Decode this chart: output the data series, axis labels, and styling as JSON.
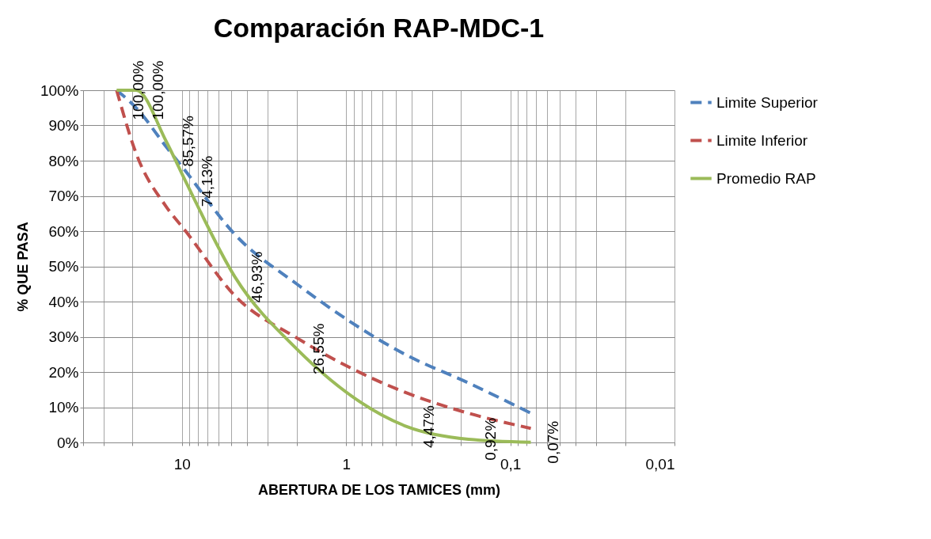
{
  "chart_data": {
    "type": "line",
    "title": "Comparación RAP-MDC-1",
    "xlabel": "ABERTURA DE LOS TAMICES (mm)",
    "ylabel": "% QUE PASA",
    "series": [
      {
        "name": "Limite Superior",
        "color": "#4f81bd",
        "line_style": "dashed",
        "x": [
          25,
          19,
          12.5,
          9.5,
          4.75,
          2.0,
          0.425,
          0.18,
          0.075
        ],
        "values": [
          100,
          95,
          84,
          77,
          59,
          45,
          24.7,
          16.9,
          8.3
        ]
      },
      {
        "name": "Limite Inferior",
        "color": "#c0504d",
        "line_style": "dashed",
        "x": [
          25,
          19,
          12.5,
          9.5,
          4.75,
          2.0,
          0.425,
          0.18,
          0.075
        ],
        "values": [
          100,
          82,
          67,
          60,
          41.6,
          29.7,
          14,
          8.3,
          4
        ]
      },
      {
        "name": "Promedio RAP",
        "color": "#9bbb59",
        "line_style": "solid",
        "x": [
          25,
          19,
          12.5,
          9.5,
          4.75,
          2.0,
          0.425,
          0.18,
          0.075
        ],
        "values": [
          100,
          100,
          85.57,
          74.13,
          46.93,
          26.55,
          4.47,
          0.92,
          0.07
        ],
        "value_labels": [
          "100,00%",
          "100,00%",
          "85,57%",
          "74,13%",
          "46,93%",
          "26,55%",
          "4,47%",
          "0,92%",
          "0,07%"
        ]
      }
    ],
    "log": "x",
    "xlim": [
      40,
      0.01
    ],
    "xticks": [
      {
        "value": 40,
        "label": null
      },
      {
        "value": 30,
        "label": null
      },
      {
        "value": 20,
        "label": null
      },
      10,
      {
        "value": 9,
        "label": null
      },
      {
        "value": 8,
        "label": null
      },
      {
        "value": 7,
        "label": null
      },
      {
        "value": 6,
        "label": null
      },
      {
        "value": 5,
        "label": null
      },
      {
        "value": 4,
        "label": null
      },
      {
        "value": 3,
        "label": null
      },
      {
        "value": 2,
        "label": null
      },
      1,
      {
        "value": 0.9,
        "label": null
      },
      {
        "value": 0.8,
        "label": null
      },
      {
        "value": 0.7,
        "label": null
      },
      {
        "value": 0.6,
        "label": null
      },
      {
        "value": 0.5,
        "label": null
      },
      {
        "value": 0.4,
        "label": null
      },
      {
        "value": 0.3,
        "label": null
      },
      {
        "value": 0.2,
        "label": null
      },
      {
        "value": 0.1,
        "label": "0,1"
      },
      {
        "value": 0.09,
        "label": null
      },
      {
        "value": 0.08,
        "label": null
      },
      {
        "value": 0.07,
        "label": null
      },
      {
        "value": 0.06,
        "label": null
      },
      {
        "value": 0.05,
        "label": null
      },
      {
        "value": 0.04,
        "label": null
      },
      {
        "value": 0.03,
        "label": null
      },
      {
        "value": 0.02,
        "label": null
      },
      {
        "value": 0.01,
        "label": "0,01"
      }
    ],
    "ylim": [
      0,
      100
    ],
    "yticks": [
      {
        "value": 0,
        "label": "0%"
      },
      {
        "value": 10,
        "label": "10%"
      },
      {
        "value": 20,
        "label": "20%"
      },
      {
        "value": 30,
        "label": "30%"
      },
      {
        "value": 40,
        "label": "40%"
      },
      {
        "value": 50,
        "label": "50%"
      },
      {
        "value": 60,
        "label": "60%"
      },
      {
        "value": 70,
        "label": "70%"
      },
      {
        "value": 80,
        "label": "80%"
      },
      {
        "value": 90,
        "label": "90%"
      },
      {
        "value": 100,
        "label": "100%"
      }
    ],
    "grid": true,
    "legend": "right",
    "marker": "none"
  }
}
